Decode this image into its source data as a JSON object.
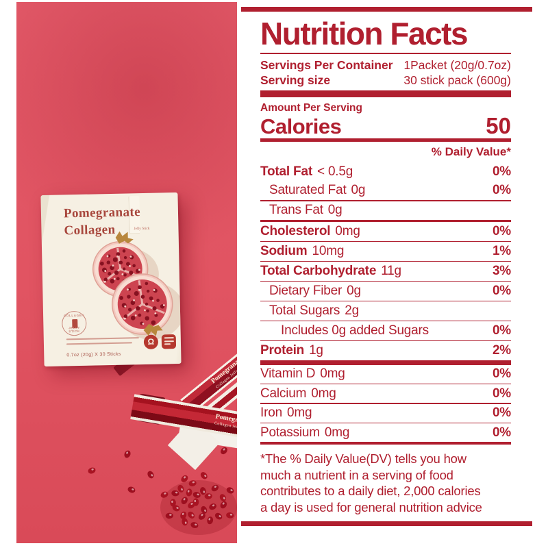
{
  "colors": {
    "label_red": "#b01f2f",
    "photo_background": "#e15462",
    "box_cream": "#f6f0e3",
    "seed_red": "#9d0f1f",
    "box_text_red": "#a8473d"
  },
  "photo": {
    "box": {
      "title_line1": "Pomegranate",
      "title_line2": "Collagen",
      "title_suffix": "Jelly Stick",
      "stamp_top": "COLLAGEN",
      "stamp_bottom": "JELLY STICK",
      "size_text": "0.7oz (20g) X 30 Sticks"
    },
    "stick_text_line1": "Pomegranate",
    "stick_text_line2": "Collagen Jelly Stick"
  },
  "label": {
    "title": "Nutrition Facts",
    "serving_rows": [
      {
        "label": "Servings Per Container",
        "value": "1Packet (20g/0.7oz)"
      },
      {
        "label": "Serving size",
        "value": "30 stick pack (600g)"
      }
    ],
    "amount_per_serving": "Amount Per Serving",
    "calories": {
      "label": "Calories",
      "value": "50"
    },
    "daily_value_header": "% Daily Value*",
    "rows": [
      {
        "name": "Total Fat",
        "amount": "< 0.5g",
        "dv": "0%"
      },
      {
        "name": "Saturated Fat",
        "amount": "0g",
        "dv": "0%"
      },
      {
        "name": "Trans Fat",
        "amount": "0g",
        "dv": ""
      },
      {
        "name": "Cholesterol",
        "amount": "0mg",
        "dv": "0%"
      },
      {
        "name": "Sodium",
        "amount": "10mg",
        "dv": "1%"
      },
      {
        "name": "Total Carbohydrate",
        "amount": "11g",
        "dv": "3%"
      },
      {
        "name": "Dietary Fiber",
        "amount": "0g",
        "dv": "0%"
      },
      {
        "name": "Total Sugars",
        "amount": "2g",
        "dv": ""
      },
      {
        "name": "Includes 0g added Sugars",
        "amount": "",
        "dv": "0%"
      },
      {
        "name": "Protein",
        "amount": "1g",
        "dv": "2%"
      }
    ],
    "vitamins": [
      {
        "name": "Vitamin D",
        "amount": "0mg",
        "dv": "0%"
      },
      {
        "name": "Calcium",
        "amount": "0mg",
        "dv": "0%"
      },
      {
        "name": "Iron",
        "amount": "0mg",
        "dv": "0%"
      },
      {
        "name": "Potassium",
        "amount": "0mg",
        "dv": "0%"
      }
    ],
    "footnote_lines": [
      "*The % Daily Value(DV) tells you how",
      "much a nutrient in a serving of food",
      "contributes to a daily diet, 2,000 calories",
      "a day is used for general nutrition advice"
    ]
  }
}
